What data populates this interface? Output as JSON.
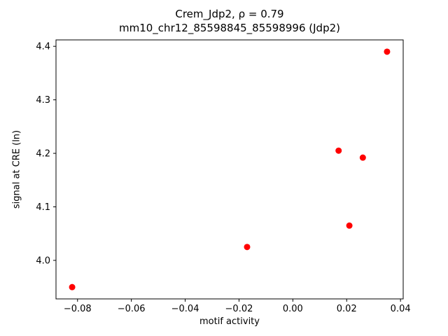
{
  "chart_data": {
    "type": "scatter",
    "title": "Crem_Jdp2, ρ = 0.79",
    "subtitle": "mm10_chr12_85598845_85598996 (Jdp2)",
    "xlabel": "motif activity",
    "ylabel": "signal at CRE (ln)",
    "xlim": [
      -0.088,
      0.041
    ],
    "ylim": [
      3.928,
      4.412
    ],
    "xticks": [
      -0.08,
      -0.06,
      -0.04,
      -0.02,
      0.0,
      0.02,
      0.04
    ],
    "xtick_labels": [
      "−0.08",
      "−0.06",
      "−0.04",
      "−0.02",
      "0.00",
      "0.02",
      "0.04"
    ],
    "yticks": [
      4.0,
      4.1,
      4.2,
      4.3,
      4.4
    ],
    "ytick_labels": [
      "4.0",
      "4.1",
      "4.2",
      "4.3",
      "4.4"
    ],
    "marker_color": "#ff0000",
    "marker_radius": 4.5,
    "grid": false,
    "legend": "none",
    "points": [
      {
        "x": -0.082,
        "y": 3.95
      },
      {
        "x": -0.017,
        "y": 4.025
      },
      {
        "x": 0.017,
        "y": 4.205
      },
      {
        "x": 0.021,
        "y": 4.065
      },
      {
        "x": 0.026,
        "y": 4.192
      },
      {
        "x": 0.035,
        "y": 4.39
      }
    ]
  }
}
